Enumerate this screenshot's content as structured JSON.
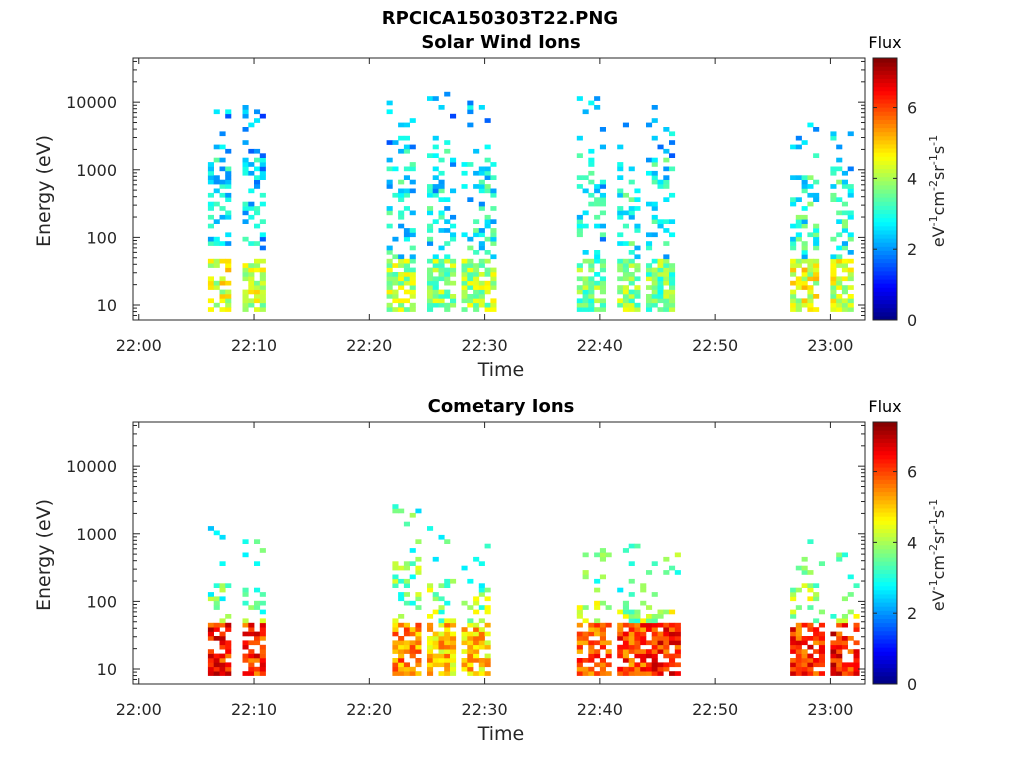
{
  "figure": {
    "title": "RPCICA150303T22.PNG"
  },
  "chart_data": [
    {
      "type": "heatmap",
      "title": "Solar Wind Ions",
      "xlabel": "Time",
      "ylabel": "Energy (eV)",
      "y_scale": "log",
      "ylim": [
        6,
        45000
      ],
      "xlim": [
        "21:59:30",
        "23:03:00"
      ],
      "x_ticks": [
        "22:00",
        "22:10",
        "22:20",
        "22:30",
        "22:40",
        "22:50",
        "23:00"
      ],
      "y_ticks": [
        "10",
        "100",
        "1000",
        "10000"
      ],
      "colorbar": {
        "label": "Flux",
        "units": "eV-1cm-2sr-1s-1",
        "ticks": [
          "0",
          "2",
          "4",
          "6"
        ],
        "range": [
          0,
          7.4
        ],
        "colormap": "jet"
      },
      "bursts": [
        {
          "start": "22:06:00",
          "end": "22:08:00",
          "low_flux": 4.4,
          "upper_energy": 10000,
          "upper_flux": 2.2
        },
        {
          "start": "22:09:00",
          "end": "22:11:00",
          "low_flux": 4.2,
          "upper_energy": 9000,
          "upper_flux": 2.0
        },
        {
          "start": "22:21:30",
          "end": "22:24:00",
          "low_flux": 4.0,
          "upper_energy": 8000,
          "upper_flux": 2.3
        },
        {
          "start": "22:25:00",
          "end": "22:27:30",
          "low_flux": 3.8,
          "upper_energy": 8000,
          "upper_flux": 2.2
        },
        {
          "start": "22:28:00",
          "end": "22:31:00",
          "low_flux": 4.0,
          "upper_energy": 6000,
          "upper_flux": 2.3
        },
        {
          "start": "22:38:00",
          "end": "22:40:30",
          "low_flux": 3.6,
          "upper_energy": 8000,
          "upper_flux": 2.1
        },
        {
          "start": "22:41:30",
          "end": "22:43:30",
          "low_flux": 3.8,
          "upper_energy": 3000,
          "upper_flux": 2.4
        },
        {
          "start": "22:44:00",
          "end": "22:46:30",
          "low_flux": 3.6,
          "upper_energy": 6000,
          "upper_flux": 2.3
        },
        {
          "start": "22:56:30",
          "end": "22:59:00",
          "low_flux": 4.4,
          "upper_energy": 3000,
          "upper_flux": 2.5
        },
        {
          "start": "23:00:00",
          "end": "23:02:00",
          "low_flux": 4.3,
          "upper_energy": 2500,
          "upper_flux": 2.5
        }
      ]
    },
    {
      "type": "heatmap",
      "title": "Cometary Ions",
      "xlabel": "Time",
      "ylabel": "Energy (eV)",
      "y_scale": "log",
      "ylim": [
        6,
        45000
      ],
      "xlim": [
        "21:59:30",
        "23:03:00"
      ],
      "x_ticks": [
        "22:00",
        "22:10",
        "22:20",
        "22:30",
        "22:40",
        "22:50",
        "23:00"
      ],
      "y_ticks": [
        "10",
        "100",
        "1000",
        "10000"
      ],
      "colorbar": {
        "label": "Flux",
        "units": "eV-1cm-2sr-1s-1",
        "ticks": [
          "0",
          "2",
          "4",
          "6"
        ],
        "range": [
          0,
          7.4
        ],
        "colormap": "jet"
      },
      "bursts": [
        {
          "start": "22:06:00",
          "end": "22:08:00",
          "low_flux": 6.3,
          "upper_energy": 800,
          "upper_flux": 3.0
        },
        {
          "start": "22:09:00",
          "end": "22:11:00",
          "low_flux": 6.2,
          "upper_energy": 600,
          "upper_flux": 3.0
        },
        {
          "start": "22:22:00",
          "end": "22:24:30",
          "low_flux": 5.5,
          "upper_energy": 1500,
          "upper_flux": 3.2
        },
        {
          "start": "22:25:00",
          "end": "22:27:30",
          "low_flux": 5.0,
          "upper_energy": 700,
          "upper_flux": 3.3
        },
        {
          "start": "22:28:00",
          "end": "22:30:30",
          "low_flux": 5.0,
          "upper_energy": 600,
          "upper_flux": 3.3
        },
        {
          "start": "22:38:00",
          "end": "22:41:00",
          "low_flux": 5.8,
          "upper_energy": 400,
          "upper_flux": 3.4
        },
        {
          "start": "22:41:30",
          "end": "22:44:00",
          "low_flux": 6.0,
          "upper_energy": 400,
          "upper_flux": 3.4
        },
        {
          "start": "22:44:00",
          "end": "22:47:00",
          "low_flux": 6.2,
          "upper_energy": 300,
          "upper_flux": 3.5
        },
        {
          "start": "22:56:30",
          "end": "22:59:30",
          "low_flux": 6.1,
          "upper_energy": 700,
          "upper_flux": 3.4
        },
        {
          "start": "23:00:00",
          "end": "23:02:30",
          "low_flux": 6.3,
          "upper_energy": 300,
          "upper_flux": 3.4
        }
      ]
    }
  ]
}
